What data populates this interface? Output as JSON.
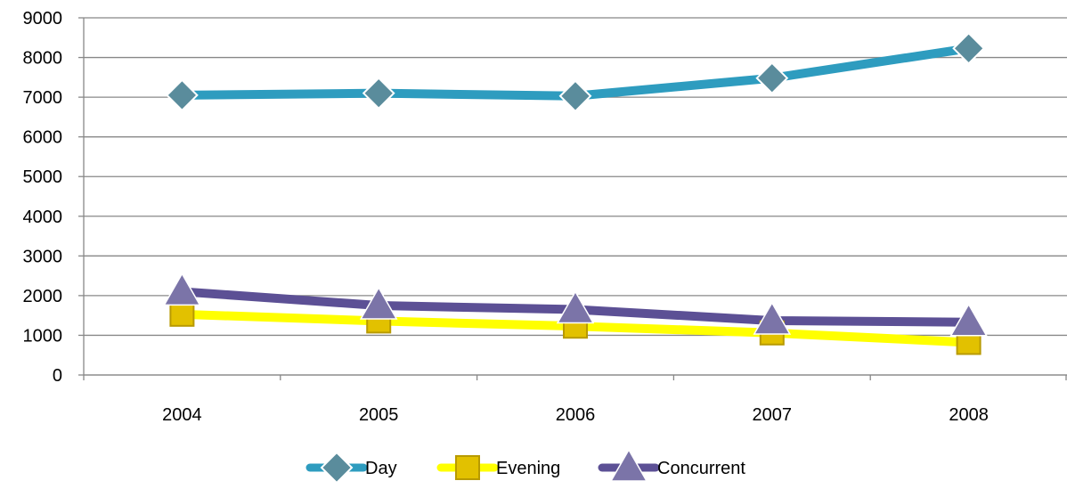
{
  "chart_data": {
    "type": "line",
    "title": "",
    "xlabel": "",
    "ylabel": "",
    "categories": [
      "2004",
      "2005",
      "2006",
      "2007",
      "2008"
    ],
    "ylim": [
      0,
      9000
    ],
    "y_ticks": [
      0,
      1000,
      2000,
      3000,
      4000,
      5000,
      6000,
      7000,
      8000,
      9000
    ],
    "grid": true,
    "legend": "bottom",
    "series": [
      {
        "name": "Day",
        "values": [
          7050,
          7100,
          7030,
          7480,
          8230
        ],
        "color": "#2E9CBF",
        "marker": "diamond",
        "marker_color": "#5A8C9C"
      },
      {
        "name": "Evening",
        "values": [
          1530,
          1360,
          1230,
          1060,
          820
        ],
        "color": "#FFFF00",
        "marker": "square",
        "marker_color": "#E2C100"
      },
      {
        "name": "Concurrent",
        "values": [
          2100,
          1750,
          1650,
          1370,
          1330
        ],
        "color": "#5C5095",
        "marker": "triangle",
        "marker_color": "#7B74A8"
      }
    ]
  }
}
